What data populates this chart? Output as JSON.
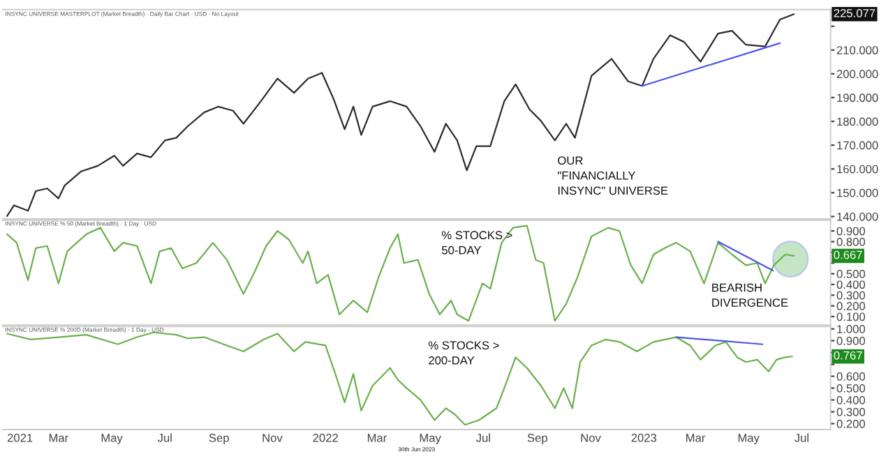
{
  "chart_data": [
    {
      "type": "line",
      "title": "INSYNC UNIVERSE MASTERPLOT (Market Breadth) · Daily Bar Chart · USD · No Layout",
      "xlim": [
        "2020-12-27",
        "2023-08-03"
      ],
      "ylim": [
        139,
        227
      ],
      "tick_labels": "y",
      "yticks": [
        {
          "value": 140,
          "label": "140.000"
        },
        {
          "value": 150,
          "label": "150.000"
        },
        {
          "value": 160,
          "label": "160.000"
        },
        {
          "value": 170,
          "label": "170.000"
        },
        {
          "value": 180,
          "label": "180.000"
        },
        {
          "value": 190,
          "label": "190.000"
        },
        {
          "value": 200,
          "label": "200.000"
        },
        {
          "value": 210,
          "label": "210.000"
        },
        {
          "value": 220,
          "label": null
        }
      ],
      "series": [
        {
          "color": "#2b2b2b",
          "x": [
            "2021-01-01",
            "2021-01-09",
            "2021-01-25",
            "2021-02-03",
            "2021-02-16",
            "2021-03-01",
            "2021-03-08",
            "2021-03-27",
            "2021-04-15",
            "2021-05-04",
            "2021-05-14",
            "2021-05-30",
            "2021-06-15",
            "2021-07-01",
            "2021-07-14",
            "2021-07-27",
            "2021-08-15",
            "2021-08-31",
            "2021-09-17",
            "2021-09-29",
            "2021-10-19",
            "2021-11-07",
            "2021-11-26",
            "2021-12-12",
            "2021-12-28",
            "2022-01-10",
            "2022-01-23",
            "2022-02-02",
            "2022-02-11",
            "2022-02-24",
            "2022-03-16",
            "2022-04-04",
            "2022-04-20",
            "2022-05-06",
            "2022-05-19",
            "2022-06-01",
            "2022-06-12",
            "2022-06-23",
            "2022-07-09",
            "2022-07-25",
            "2022-08-07",
            "2022-08-23",
            "2022-09-05",
            "2022-09-21",
            "2022-10-04",
            "2022-10-14",
            "2022-11-02",
            "2022-11-25",
            "2022-12-14",
            "2022-12-30",
            "2023-01-12",
            "2023-01-31",
            "2023-02-16",
            "2023-03-07",
            "2023-03-27",
            "2023-04-12",
            "2023-04-28",
            "2023-05-20",
            "2023-06-06",
            "2023-06-22"
          ],
          "values": [
            140.2,
            144.7,
            142.4,
            150.7,
            151.8,
            147.6,
            153,
            159,
            161.3,
            165.6,
            161.3,
            166.5,
            164.9,
            172,
            173.1,
            177.9,
            183.8,
            186.2,
            184.5,
            179,
            188.5,
            198,
            192,
            198,
            200.4,
            189.7,
            176.7,
            186.2,
            174.3,
            186.2,
            188.5,
            186.2,
            177.9,
            167.2,
            179,
            172,
            159.4,
            169.6,
            169.6,
            188.5,
            195.6,
            185,
            180.2,
            172,
            179,
            173.1,
            199.2,
            206.3,
            196.8,
            194.9,
            206.3,
            216.2,
            213.4,
            205.1,
            216.9,
            218.1,
            212.2,
            211.5,
            222.8,
            225.077
          ]
        },
        {
          "type": "line",
          "color": "#4a55e8",
          "x": [
            "2022-12-30",
            "2023-06-06"
          ],
          "values": [
            194.9,
            212.9
          ]
        }
      ],
      "annotations": [
        "225.077",
        "OUR\n\"FINANCIALLY\nINSYNC\" UNIVERSE"
      ]
    },
    {
      "type": "line",
      "title": "INSYNC UNIVERSE % 50 (Market Breadth) · 1 Day · USD",
      "xlim": [
        "2020-12-27",
        "2023-08-03"
      ],
      "ylim": [
        0.02,
        1.0
      ],
      "tick_labels": "y",
      "yticks": [
        {
          "value": 0.1,
          "label": "0.100"
        },
        {
          "value": 0.2,
          "label": "0.200"
        },
        {
          "value": 0.3,
          "label": "0.300"
        },
        {
          "value": 0.4,
          "label": "0.400"
        },
        {
          "value": 0.5,
          "label": "0.500"
        },
        {
          "value": 0.6,
          "label": null
        },
        {
          "value": 0.7,
          "label": null
        },
        {
          "value": 0.8,
          "label": "0.800"
        },
        {
          "value": 0.9,
          "label": "0.900"
        }
      ],
      "series": [
        {
          "color": "#6ab04c",
          "x": [
            "2021-01-01",
            "2021-01-12",
            "2021-01-25",
            "2021-02-03",
            "2021-02-16",
            "2021-03-01",
            "2021-03-11",
            "2021-04-02",
            "2021-04-18",
            "2021-05-04",
            "2021-05-14",
            "2021-05-30",
            "2021-06-15",
            "2021-06-25",
            "2021-07-08",
            "2021-07-21",
            "2021-08-06",
            "2021-08-25",
            "2021-09-10",
            "2021-09-29",
            "2021-10-12",
            "2021-10-25",
            "2021-11-07",
            "2021-11-20",
            "2021-12-06",
            "2021-12-12",
            "2021-12-22",
            "2022-01-04",
            "2022-01-17",
            "2022-02-02",
            "2022-02-18",
            "2022-03-03",
            "2022-03-16",
            "2022-03-25",
            "2022-04-01",
            "2022-04-17",
            "2022-04-30",
            "2022-05-12",
            "2022-05-25",
            "2022-06-01",
            "2022-06-14",
            "2022-06-30",
            "2022-07-09",
            "2022-07-22",
            "2022-08-04",
            "2022-08-20",
            "2022-08-30",
            "2022-09-08",
            "2022-09-21",
            "2022-10-04",
            "2022-10-17",
            "2022-11-02",
            "2022-11-21",
            "2022-12-04",
            "2022-12-17",
            "2022-12-30",
            "2023-01-12",
            "2023-01-25",
            "2023-02-07",
            "2023-02-23",
            "2023-03-11",
            "2023-03-27",
            "2023-04-12",
            "2023-04-28",
            "2023-05-11",
            "2023-05-20",
            "2023-05-30",
            "2023-06-12",
            "2023-06-22"
          ],
          "values": [
            0.87,
            0.79,
            0.44,
            0.74,
            0.76,
            0.41,
            0.71,
            0.87,
            0.93,
            0.71,
            0.79,
            0.76,
            0.41,
            0.71,
            0.74,
            0.55,
            0.6,
            0.79,
            0.63,
            0.31,
            0.52,
            0.76,
            0.9,
            0.82,
            0.6,
            0.71,
            0.41,
            0.49,
            0.12,
            0.25,
            0.14,
            0.47,
            0.74,
            0.87,
            0.6,
            0.63,
            0.31,
            0.12,
            0.25,
            0.12,
            0.06,
            0.41,
            0.36,
            0.79,
            0.93,
            0.95,
            0.63,
            0.6,
            0.06,
            0.22,
            0.47,
            0.85,
            0.93,
            0.9,
            0.58,
            0.41,
            0.68,
            0.74,
            0.79,
            0.71,
            0.41,
            0.79,
            0.68,
            0.58,
            0.6,
            0.41,
            0.58,
            0.68,
            0.667
          ]
        },
        {
          "type": "line",
          "color": "#4a55e8",
          "x": [
            "2023-03-27",
            "2023-05-29"
          ],
          "values": [
            0.8,
            0.53
          ]
        }
      ],
      "annotations": [
        "0.667",
        "% STOCKS >\n50-DAY",
        "BEARISH\nDIVERGENCE"
      ]
    },
    {
      "type": "line",
      "title": "INSYNC UNIVERSE % 200D (Market Breadth) · 1 Day · USD",
      "xlim": [
        "2020-12-27",
        "2023-08-03"
      ],
      "ylim": [
        0.15,
        1.02
      ],
      "xticks": [
        {
          "value": "2021-01-01",
          "label": "2021"
        },
        {
          "value": "2021-03-01",
          "label": "Mar"
        },
        {
          "value": "2021-05-01",
          "label": "May"
        },
        {
          "value": "2021-07-01",
          "label": "Jul"
        },
        {
          "value": "2021-09-01",
          "label": "Sep"
        },
        {
          "value": "2021-11-01",
          "label": "Nov"
        },
        {
          "value": "2022-01-01",
          "label": "2022"
        },
        {
          "value": "2022-03-01",
          "label": "Mar"
        },
        {
          "value": "2022-05-01",
          "label": "May"
        },
        {
          "value": "2022-07-01",
          "label": "Jul"
        },
        {
          "value": "2022-09-01",
          "label": "Sep"
        },
        {
          "value": "2022-11-01",
          "label": "Nov"
        },
        {
          "value": "2023-01-01",
          "label": "2023"
        },
        {
          "value": "2023-03-01",
          "label": "Mar"
        },
        {
          "value": "2023-05-01",
          "label": "May"
        },
        {
          "value": "2023-07-01",
          "label": "Jul"
        }
      ],
      "yticks": [
        {
          "value": 0.2,
          "label": "0.200"
        },
        {
          "value": 0.3,
          "label": "0.300"
        },
        {
          "value": 0.4,
          "label": "0.400"
        },
        {
          "value": 0.5,
          "label": "0.500"
        },
        {
          "value": 0.6,
          "label": "0.600"
        },
        {
          "value": 0.7,
          "label": null
        },
        {
          "value": 0.8,
          "label": null
        },
        {
          "value": 0.9,
          "label": "0.900"
        },
        {
          "value": 1.0,
          "label": "1.000"
        }
      ],
      "series": [
        {
          "color": "#6ab04c",
          "x": [
            "2021-01-01",
            "2021-01-28",
            "2021-03-01",
            "2021-04-02",
            "2021-05-08",
            "2021-05-30",
            "2021-06-18",
            "2021-07-14",
            "2021-07-27",
            "2021-08-15",
            "2021-09-10",
            "2021-09-29",
            "2021-10-22",
            "2021-11-07",
            "2021-11-26",
            "2021-12-09",
            "2022-01-01",
            "2022-01-10",
            "2022-01-23",
            "2022-02-02",
            "2022-02-11",
            "2022-02-24",
            "2022-03-16",
            "2022-03-25",
            "2022-04-04",
            "2022-04-20",
            "2022-05-06",
            "2022-05-19",
            "2022-05-29",
            "2022-06-10",
            "2022-06-26",
            "2022-07-16",
            "2022-07-25",
            "2022-08-07",
            "2022-08-20",
            "2022-09-05",
            "2022-09-21",
            "2022-10-01",
            "2022-10-11",
            "2022-10-20",
            "2022-11-02",
            "2022-11-18",
            "2022-12-04",
            "2022-12-24",
            "2023-01-12",
            "2023-02-07",
            "2023-02-23",
            "2023-03-07",
            "2023-03-24",
            "2023-04-05",
            "2023-04-18",
            "2023-04-28",
            "2023-05-11",
            "2023-05-24",
            "2023-06-02",
            "2023-06-12",
            "2023-06-20"
          ],
          "values": [
            0.96,
            0.91,
            0.93,
            0.95,
            0.87,
            0.93,
            0.97,
            0.95,
            0.92,
            0.93,
            0.86,
            0.81,
            0.91,
            0.96,
            0.81,
            0.89,
            0.86,
            0.67,
            0.38,
            0.62,
            0.31,
            0.52,
            0.67,
            0.57,
            0.5,
            0.4,
            0.23,
            0.33,
            0.28,
            0.19,
            0.23,
            0.33,
            0.5,
            0.76,
            0.67,
            0.52,
            0.33,
            0.5,
            0.33,
            0.72,
            0.86,
            0.91,
            0.89,
            0.81,
            0.89,
            0.93,
            0.86,
            0.74,
            0.86,
            0.89,
            0.76,
            0.72,
            0.74,
            0.64,
            0.74,
            0.76,
            0.767
          ]
        },
        {
          "type": "line",
          "color": "#4a55e8",
          "x": [
            "2023-02-07",
            "2023-05-17"
          ],
          "values": [
            0.93,
            0.87
          ]
        }
      ],
      "annotations": [
        "0.767",
        "% STOCKS >\n200-DAY",
        "30th Jun 2023"
      ]
    }
  ]
}
